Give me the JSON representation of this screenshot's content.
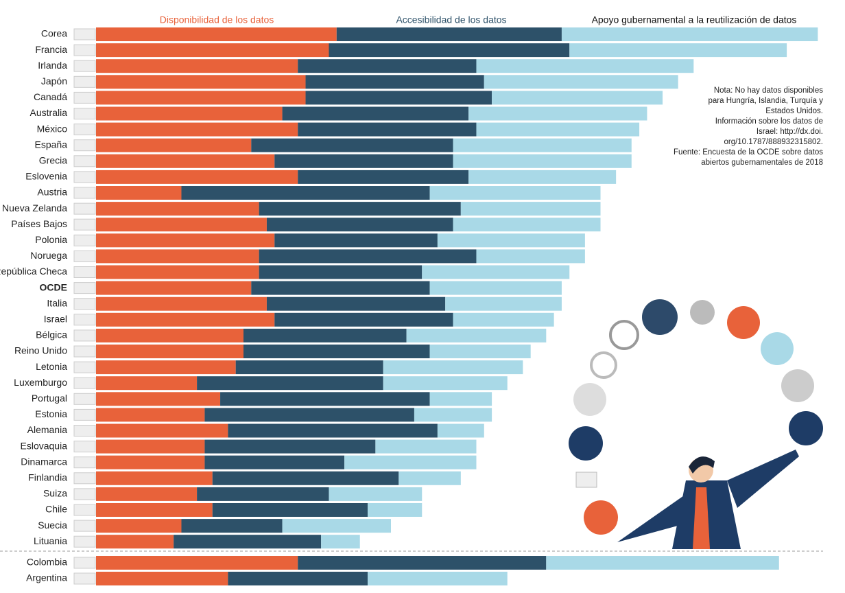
{
  "chart_data": {
    "type": "stacked-bar-horizontal",
    "categories": [
      "Corea",
      "Francia",
      "Irlanda",
      "Japón",
      "Canadá",
      "Australia",
      "México",
      "España",
      "Grecia",
      "Eslovenia",
      "Austria",
      "Nueva Zelanda",
      "Países Bajos",
      "Polonia",
      "Noruega",
      "República Checa",
      "OCDE",
      "Italia",
      "Israel",
      "Bélgica",
      "Reino Unido",
      "Letonia",
      "Luxemburgo",
      "Portugal",
      "Estonia",
      "Alemania",
      "Eslovaquia",
      "Dinamarca",
      "Finlandia",
      "Suiza",
      "Chile",
      "Suecia",
      "Lituania",
      "Colombia",
      "Argentina"
    ],
    "series": [
      {
        "name": "Disponibilidad de los datos",
        "color": "#e8623a",
        "values": [
          0.31,
          0.3,
          0.26,
          0.27,
          0.27,
          0.24,
          0.26,
          0.2,
          0.23,
          0.26,
          0.11,
          0.21,
          0.22,
          0.23,
          0.21,
          0.21,
          0.2,
          0.22,
          0.23,
          0.19,
          0.19,
          0.18,
          0.13,
          0.16,
          0.14,
          0.17,
          0.14,
          0.14,
          0.15,
          0.13,
          0.15,
          0.11,
          0.1,
          0.26,
          0.17
        ]
      },
      {
        "name": "Accesibilidad de los datos",
        "color": "#2d5169",
        "values": [
          0.29,
          0.31,
          0.23,
          0.23,
          0.24,
          0.24,
          0.23,
          0.26,
          0.23,
          0.22,
          0.32,
          0.26,
          0.24,
          0.21,
          0.28,
          0.21,
          0.23,
          0.23,
          0.23,
          0.21,
          0.24,
          0.19,
          0.24,
          0.27,
          0.27,
          0.27,
          0.22,
          0.18,
          0.24,
          0.17,
          0.2,
          0.13,
          0.19,
          0.32,
          0.18
        ]
      },
      {
        "name": "Apoyo gubernamental a la reutilización de datos",
        "color": "#a9d9e7",
        "values": [
          0.33,
          0.28,
          0.28,
          0.25,
          0.22,
          0.23,
          0.21,
          0.23,
          0.23,
          0.19,
          0.22,
          0.18,
          0.19,
          0.19,
          0.14,
          0.19,
          0.17,
          0.15,
          0.13,
          0.18,
          0.13,
          0.18,
          0.16,
          0.08,
          0.1,
          0.06,
          0.13,
          0.17,
          0.08,
          0.12,
          0.07,
          0.14,
          0.05,
          0.3,
          0.18
        ]
      }
    ],
    "xlim": [
      0,
      0.95
    ],
    "note": [
      "Nota: No hay datos disponibles",
      "para Hungría, Islandia, Turquía y",
      "Estados Unidos.",
      "Información sobre los datos de",
      "Israel: http://dx.doi.",
      "org/10.1787/888932315802.",
      "Fuente: Encuesta de la OCDE sobre datos",
      "abiertos gubernamentales de 2018"
    ]
  }
}
